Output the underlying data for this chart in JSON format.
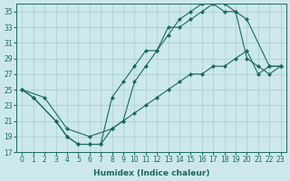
{
  "xlabel": "Humidex (Indice chaleur)",
  "bg_color": "#cce8ec",
  "grid_color": "#aacccc",
  "line_color": "#1a6b5a",
  "xlim_min": -0.5,
  "xlim_max": 23.5,
  "ylim_min": 17,
  "ylim_max": 36,
  "yticks": [
    17,
    19,
    21,
    23,
    25,
    27,
    29,
    31,
    33,
    35
  ],
  "xticks": [
    0,
    1,
    2,
    3,
    4,
    5,
    6,
    7,
    8,
    9,
    10,
    11,
    12,
    13,
    14,
    15,
    16,
    17,
    18,
    19,
    20,
    21,
    22,
    23
  ],
  "line1_x": [
    0,
    1,
    3,
    4,
    5,
    6,
    7,
    8,
    9,
    10,
    11,
    12,
    13,
    14,
    15,
    16,
    17,
    18,
    19,
    20,
    21,
    22,
    23
  ],
  "line1_y": [
    25,
    24,
    21,
    19,
    18,
    18,
    18,
    20,
    21,
    26,
    28,
    30,
    33,
    33,
    34,
    35,
    36,
    36,
    35,
    29,
    28,
    27,
    28
  ],
  "line2_x": [
    0,
    1,
    3,
    4,
    5,
    6,
    7,
    8,
    9,
    10,
    11,
    12,
    13,
    14,
    15,
    16,
    17,
    18,
    19,
    20,
    22,
    23
  ],
  "line2_y": [
    25,
    24,
    21,
    19,
    18,
    18,
    18,
    24,
    26,
    28,
    30,
    30,
    32,
    34,
    35,
    36,
    36,
    35,
    35,
    34,
    28,
    28
  ],
  "line3_x": [
    0,
    2,
    4,
    6,
    8,
    9,
    10,
    11,
    12,
    13,
    14,
    15,
    16,
    17,
    18,
    19,
    20,
    21,
    22,
    23
  ],
  "line3_y": [
    25,
    24,
    20,
    19,
    20,
    21,
    22,
    23,
    24,
    25,
    26,
    27,
    27,
    28,
    28,
    29,
    30,
    27,
    28,
    28
  ]
}
